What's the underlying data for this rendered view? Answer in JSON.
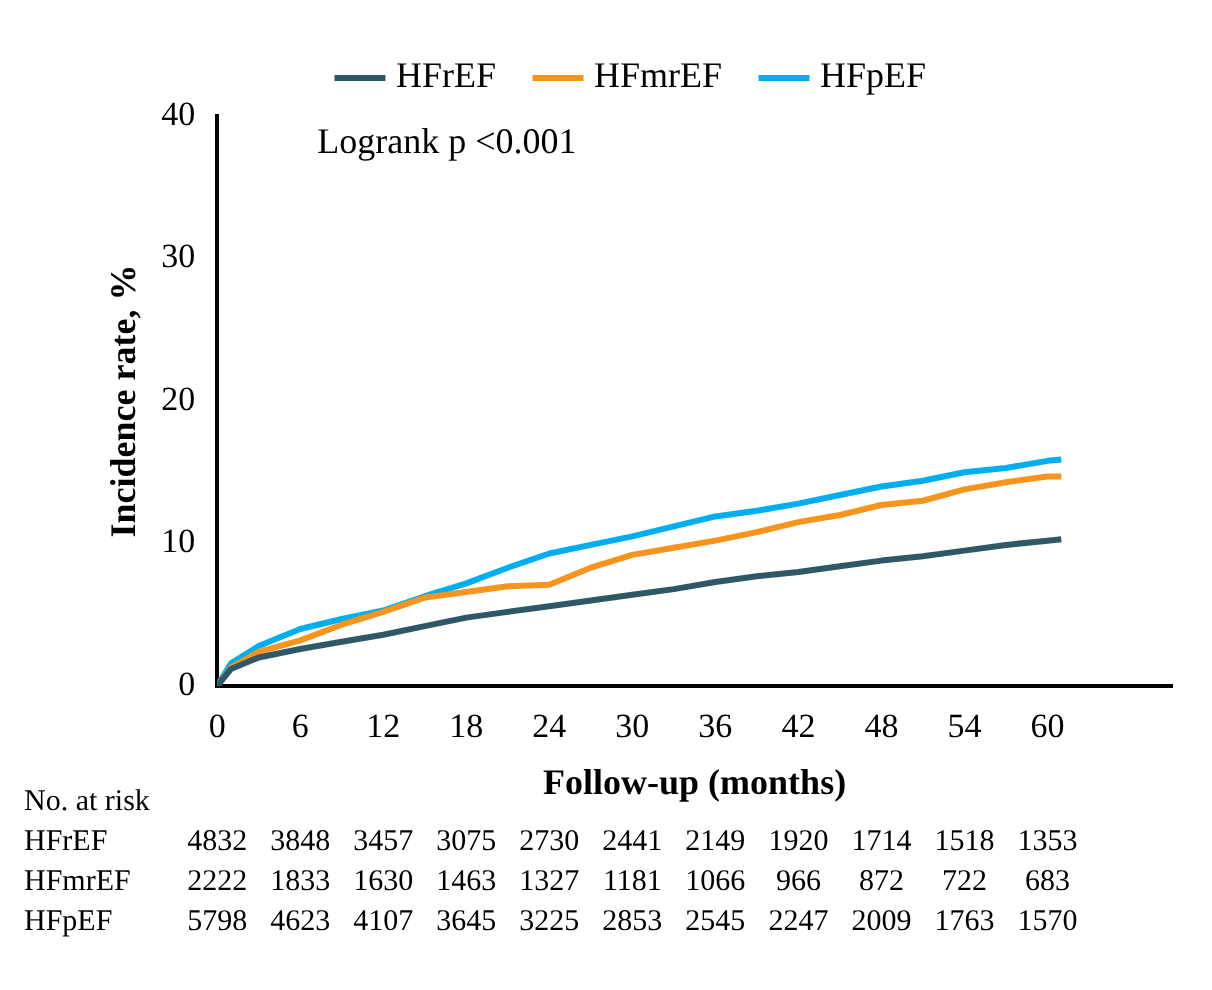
{
  "chart_data": {
    "type": "line",
    "xlabel": "Follow-up (months)",
    "ylabel": "Incidence rate, %",
    "xlim": [
      0,
      69
    ],
    "xticks": [
      0,
      6,
      12,
      18,
      24,
      30,
      36,
      42,
      48,
      54,
      60
    ],
    "ylim": [
      0,
      40
    ],
    "yticks": [
      0,
      10,
      20,
      30,
      40
    ],
    "grid": false,
    "legend": "top",
    "marker": "none",
    "line_style": "solid",
    "series": [
      {
        "name": "HFrEF",
        "color": "#2e5866",
        "x": [
          0,
          1,
          3,
          6,
          9,
          12,
          15,
          18,
          21,
          24,
          27,
          30,
          33,
          36,
          39,
          42,
          45,
          48,
          51,
          54,
          57,
          60,
          61
        ],
        "values": [
          0,
          1.2,
          2.0,
          2.6,
          3.1,
          3.6,
          4.2,
          4.8,
          5.2,
          5.6,
          6.0,
          6.4,
          6.8,
          7.3,
          7.7,
          8.0,
          8.4,
          8.8,
          9.1,
          9.5,
          9.9,
          10.2,
          10.3
        ]
      },
      {
        "name": "HFmrEF",
        "color": "#f7941d",
        "x": [
          0,
          1,
          3,
          6,
          9,
          12,
          15,
          18,
          21,
          24,
          27,
          30,
          33,
          36,
          39,
          42,
          45,
          48,
          51,
          54,
          57,
          60,
          61
        ],
        "values": [
          0,
          1.3,
          2.4,
          3.2,
          4.3,
          5.2,
          6.2,
          6.6,
          7.0,
          7.1,
          8.3,
          9.2,
          9.7,
          10.2,
          10.8,
          11.5,
          12.0,
          12.7,
          13.0,
          13.8,
          14.3,
          14.7,
          14.7
        ]
      },
      {
        "name": "HFpEF",
        "color": "#00aeef",
        "x": [
          0,
          1,
          3,
          6,
          9,
          12,
          15,
          18,
          21,
          24,
          27,
          30,
          33,
          36,
          39,
          42,
          45,
          48,
          51,
          54,
          57,
          60,
          61
        ],
        "values": [
          0,
          1.6,
          2.8,
          4.0,
          4.7,
          5.3,
          6.3,
          7.2,
          8.3,
          9.3,
          9.9,
          10.5,
          11.2,
          11.9,
          12.3,
          12.8,
          13.4,
          14.0,
          14.4,
          15.0,
          15.3,
          15.8,
          15.9
        ]
      }
    ],
    "annotations": [
      "Logrank p <0.001",
      "No. at risk",
      "HFrEF 4832 3848 3457 3075 2730 2441 2149 1920 1714 1518 1353",
      "HFmrEF 2222 1833 1630 1463 1327 1181 1066 966 872 722 683",
      "HFpEF 5798 4623 4107 3645 3225 2853 2545 2247 2009 1763 1570"
    ]
  }
}
